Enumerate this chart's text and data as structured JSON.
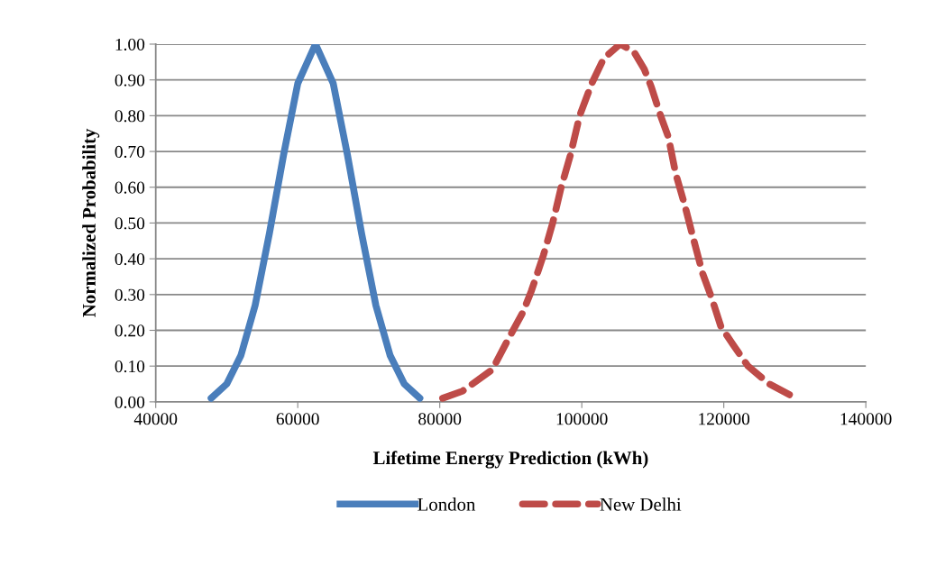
{
  "chart_data": {
    "type": "line",
    "xlabel": "Lifetime Energy Prediction (kWh)",
    "ylabel": "Normalized Probability",
    "xlim": [
      40000,
      140000
    ],
    "xticks": [
      40000,
      60000,
      80000,
      100000,
      120000,
      140000
    ],
    "ylim": [
      0,
      1
    ],
    "yticks": [
      {
        "value": 0,
        "label": "0.00"
      },
      {
        "value": 0.1,
        "label": "0.10"
      },
      {
        "value": 0.2,
        "label": "0.20"
      },
      {
        "value": 0.3,
        "label": "0.30"
      },
      {
        "value": 0.4,
        "label": "0.40"
      },
      {
        "value": 0.5,
        "label": "0.50"
      },
      {
        "value": 0.6,
        "label": "0.60"
      },
      {
        "value": 0.7,
        "label": "0.70"
      },
      {
        "value": 0.8,
        "label": "0.80"
      },
      {
        "value": 0.9,
        "label": "0.90"
      },
      {
        "value": 1,
        "label": "1.00"
      }
    ],
    "grid": "y",
    "legend": "bottom",
    "marker": "none",
    "series": [
      {
        "name": "London",
        "color": "#4a7ebb",
        "line_style": "solid",
        "x": [
          47800,
          50000,
          52000,
          54000,
          56000,
          58000,
          60000,
          62500,
          65000,
          67000,
          69000,
          71000,
          73000,
          75000,
          77200
        ],
        "values": [
          0.01,
          0.05,
          0.13,
          0.27,
          0.47,
          0.69,
          0.89,
          1.0,
          0.89,
          0.69,
          0.47,
          0.27,
          0.13,
          0.05,
          0.01
        ]
      },
      {
        "name": "New Delhi",
        "color": "#be4b48",
        "line_style": "dashed",
        "x": [
          80400,
          83200,
          87400,
          89500,
          91700,
          92900,
          94600,
          95900,
          97100,
          98400,
          99700,
          101400,
          103100,
          105400,
          107300,
          108800,
          109800,
          111100,
          112200,
          113200,
          114500,
          115800,
          117000,
          118300,
          119600,
          121300,
          123400,
          126400,
          130200
        ],
        "values": [
          0.01,
          0.03,
          0.09,
          0.17,
          0.25,
          0.31,
          0.41,
          0.5,
          0.6,
          0.69,
          0.8,
          0.89,
          0.96,
          1.0,
          0.98,
          0.93,
          0.88,
          0.8,
          0.74,
          0.64,
          0.55,
          0.45,
          0.36,
          0.29,
          0.21,
          0.16,
          0.1,
          0.05,
          0.01
        ]
      }
    ]
  }
}
